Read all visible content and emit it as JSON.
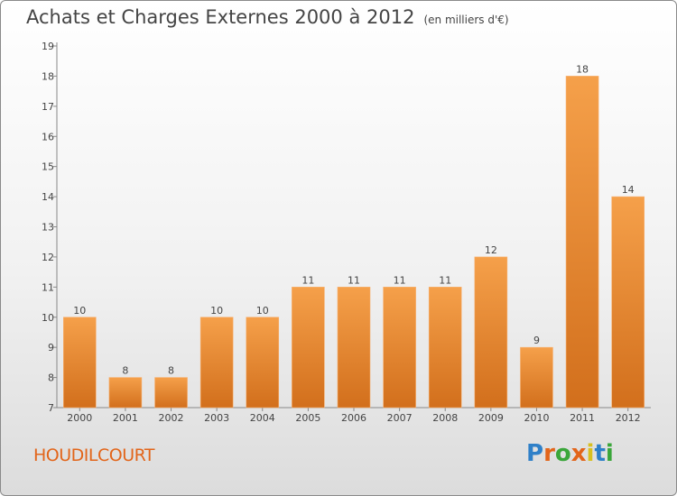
{
  "header": {
    "title": "Achats et Charges Externes 2000 à 2012",
    "unit": "(en milliers d'€)"
  },
  "footer": {
    "commune": "HOUDILCOURT",
    "brand": "Proxiti",
    "brand_colors": [
      "#2f80c8",
      "#e2651a",
      "#3aa63a",
      "#e2651a",
      "#d8c020",
      "#2f80c8",
      "#3aa63a"
    ]
  },
  "colors": {
    "bar_top": "#f5a04a",
    "bar_bottom": "#d26f1c",
    "text": "#444444",
    "commune": "#e2651a"
  },
  "chart_data": {
    "type": "bar",
    "title": "Achats et Charges Externes 2000 à 2012",
    "categories": [
      "2000",
      "2001",
      "2002",
      "2003",
      "2004",
      "2005",
      "2006",
      "2007",
      "2008",
      "2009",
      "2010",
      "2011",
      "2012"
    ],
    "values": [
      10,
      8,
      8,
      10,
      10,
      11,
      11,
      11,
      11,
      12,
      9,
      18,
      14
    ],
    "ylim": [
      7,
      19
    ],
    "yticks": [
      7,
      8,
      9,
      10,
      11,
      12,
      13,
      14,
      15,
      16,
      17,
      18,
      19
    ],
    "grid": false,
    "legend": "none",
    "data_labels": true
  }
}
